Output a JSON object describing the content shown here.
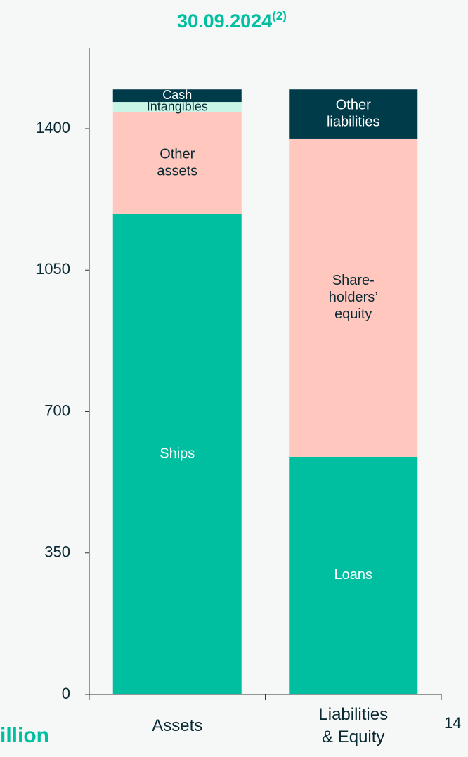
{
  "chart_data": {
    "type": "stacked_bar",
    "title": "30.09.2024",
    "title_superscript": "(2)",
    "categories": [
      "Assets",
      "Liabilities\n& Equity"
    ],
    "series": [
      {
        "name": "Ships",
        "color": "#00bfa0",
        "label_color": "#ffffff",
        "values": [
          1188,
          null
        ]
      },
      {
        "name": "Other\nassets",
        "color": "#ffc7bd",
        "label_color": "#0a2a33",
        "values": [
          252,
          null
        ]
      },
      {
        "name": "Intangibles",
        "color": "#c8f5e6",
        "label_color": "#0a2a33",
        "values": [
          26,
          null
        ]
      },
      {
        "name": "Cash",
        "color": "#003b4a",
        "label_color": "#ffffff",
        "values": [
          31,
          null
        ]
      },
      {
        "name": "Loans",
        "color": "#00bfa0",
        "label_color": "#ffffff",
        "values": [
          null,
          588
        ]
      },
      {
        "name": "Share-\nholders’\nequity",
        "color": "#ffc7bd",
        "label_color": "#0a2a33",
        "values": [
          null,
          786
        ]
      },
      {
        "name": "Other\nliabilities",
        "color": "#003b4a",
        "label_color": "#ffffff",
        "values": [
          null,
          123
        ]
      }
    ],
    "ylim": [
      0,
      1600
    ],
    "yticks": [
      0,
      350,
      700,
      1050,
      1400
    ],
    "footer_left": "illion",
    "footer_right": "14"
  }
}
